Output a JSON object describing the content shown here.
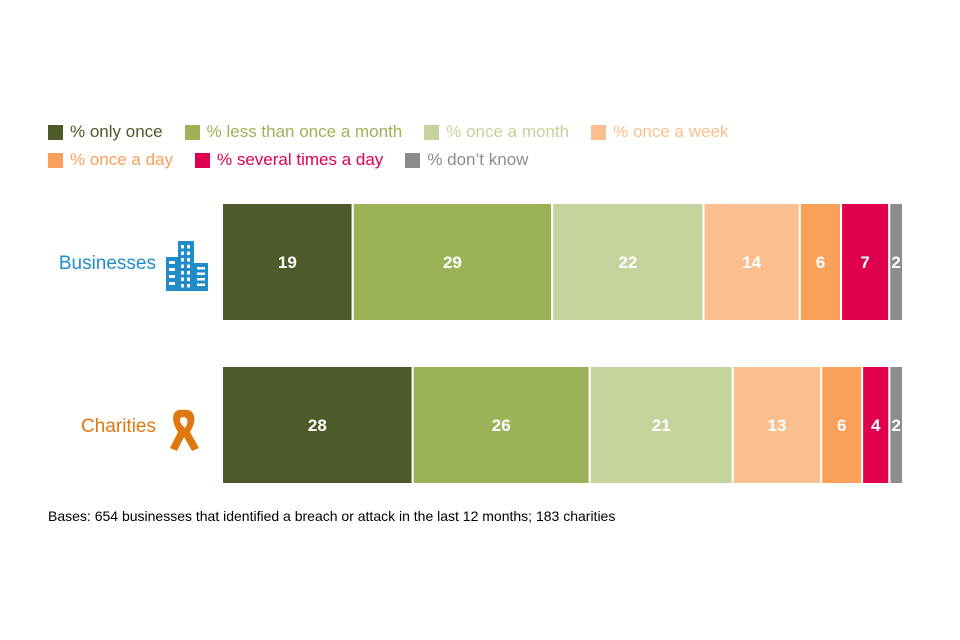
{
  "chart_data": {
    "type": "bar",
    "orientation": "horizontal",
    "stacked": true,
    "categories": [
      "Businesses",
      "Charities"
    ],
    "series": [
      {
        "name": "% only once",
        "values": [
          19,
          28
        ],
        "color": "#4d5a2a"
      },
      {
        "name": "% less than once a month",
        "values": [
          29,
          26
        ],
        "color": "#9bb356"
      },
      {
        "name": "% once a month",
        "values": [
          22,
          21
        ],
        "color": "#c4d29c"
      },
      {
        "name": "% once a week",
        "values": [
          14,
          13
        ],
        "color": "#fbbf8f"
      },
      {
        "name": "% once a day",
        "values": [
          6,
          6
        ],
        "color": "#f9a05a"
      },
      {
        "name": "% several times a day",
        "values": [
          7,
          4
        ],
        "color": "#e0004d"
      },
      {
        "name": "% don’t know",
        "values": [
          2,
          2
        ],
        "color": "#8c8c8c"
      }
    ],
    "category_colors": [
      "#1f8dc8",
      "#e07810"
    ],
    "category_icons": [
      "office-building-icon",
      "awareness-ribbon-icon"
    ],
    "xlim": [
      0,
      100
    ],
    "legend_position": "top-left",
    "grid": false
  },
  "footnote": "Bases: 654 businesses that identified a breach or attack in the last 12 months; 183 charities"
}
